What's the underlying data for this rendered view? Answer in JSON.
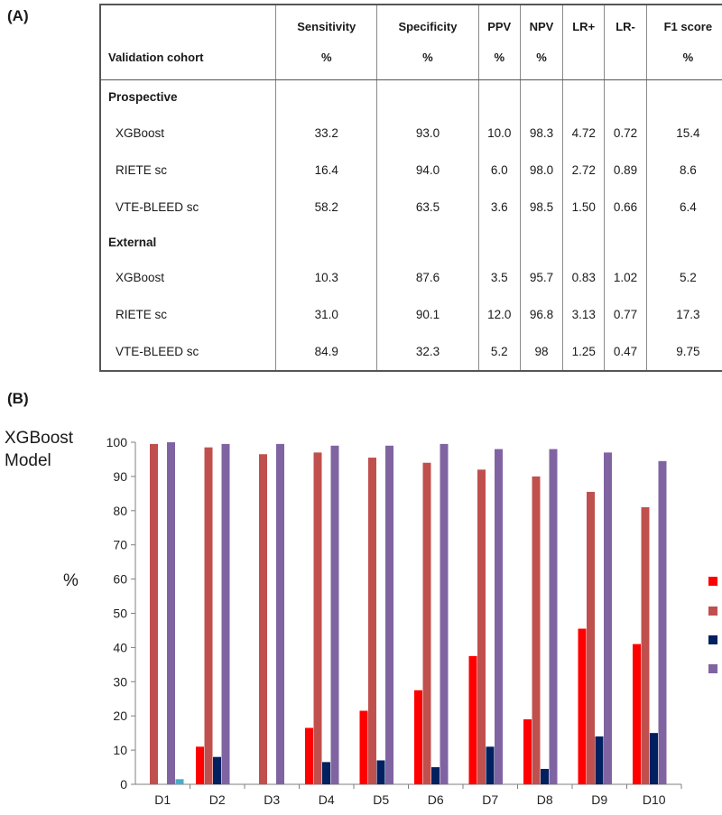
{
  "panel_a_label": "(A)",
  "panel_b_label": "(B)",
  "table": {
    "headers": [
      {
        "top": "",
        "bottom": "Validation cohort"
      },
      {
        "top": "Sensitivity",
        "bottom": "%"
      },
      {
        "top": "Specificity",
        "bottom": "%"
      },
      {
        "top": "PPV",
        "bottom": "%"
      },
      {
        "top": "NPV",
        "bottom": "%"
      },
      {
        "top": "LR+",
        "bottom": ""
      },
      {
        "top": "LR-",
        "bottom": ""
      },
      {
        "top": "F1 score",
        "bottom": "%"
      }
    ],
    "groups": [
      {
        "name": "Prospective",
        "rows": [
          [
            "XGBoost",
            "33.2",
            "93.0",
            "10.0",
            "98.3",
            "4.72",
            "0.72",
            "15.4"
          ],
          [
            "RIETE sc",
            "16.4",
            "94.0",
            "6.0",
            "98.0",
            "2.72",
            "0.89",
            "8.6"
          ],
          [
            "VTE-BLEED sc",
            "58.2",
            "63.5",
            "3.6",
            "98.5",
            "1.50",
            "0.66",
            "6.4"
          ]
        ]
      },
      {
        "name": "External",
        "rows": [
          [
            "XGBoost",
            "10.3",
            "87.6",
            "3.5",
            "95.7",
            "0.83",
            "1.02",
            "5.2"
          ],
          [
            "RIETE sc",
            "31.0",
            "90.1",
            "12.0",
            "96.8",
            "3.13",
            "0.77",
            "17.3"
          ],
          [
            "VTE-BLEED sc",
            "84.9",
            "32.3",
            "5.2",
            "98",
            "1.25",
            "0.47",
            "9.75"
          ]
        ]
      }
    ]
  },
  "chart_data": {
    "type": "bar",
    "title_lines": [
      "XGBoost",
      "Model"
    ],
    "ylabel": "%",
    "ylim": [
      0,
      100
    ],
    "yticks": [
      0,
      10,
      20,
      30,
      40,
      50,
      60,
      70,
      80,
      90,
      100
    ],
    "categories": [
      "D1",
      "D2",
      "D3",
      "D4",
      "D5",
      "D6",
      "D7",
      "D8",
      "D9",
      "D10"
    ],
    "legend_position": "right, cropped",
    "series": [
      {
        "color": "#ff0000",
        "values": [
          0,
          11,
          0,
          16.5,
          21.5,
          27.5,
          37.5,
          19,
          45.5,
          41
        ]
      },
      {
        "color": "#c0504d",
        "values": [
          99.5,
          98.5,
          96.5,
          97,
          95.5,
          94,
          92,
          90,
          85.5,
          81
        ]
      },
      {
        "color": "#002060",
        "values": [
          0,
          8,
          0,
          6.5,
          7,
          5,
          11,
          4.5,
          14,
          15
        ]
      },
      {
        "color": "#8064a2",
        "values": [
          100,
          99.5,
          99.5,
          99,
          99,
          99.5,
          98,
          98,
          97,
          94.5
        ]
      },
      {
        "color": "#4bacc6",
        "values": [
          1.5,
          0,
          0,
          0,
          0,
          0,
          0,
          0,
          0,
          0
        ]
      }
    ]
  }
}
